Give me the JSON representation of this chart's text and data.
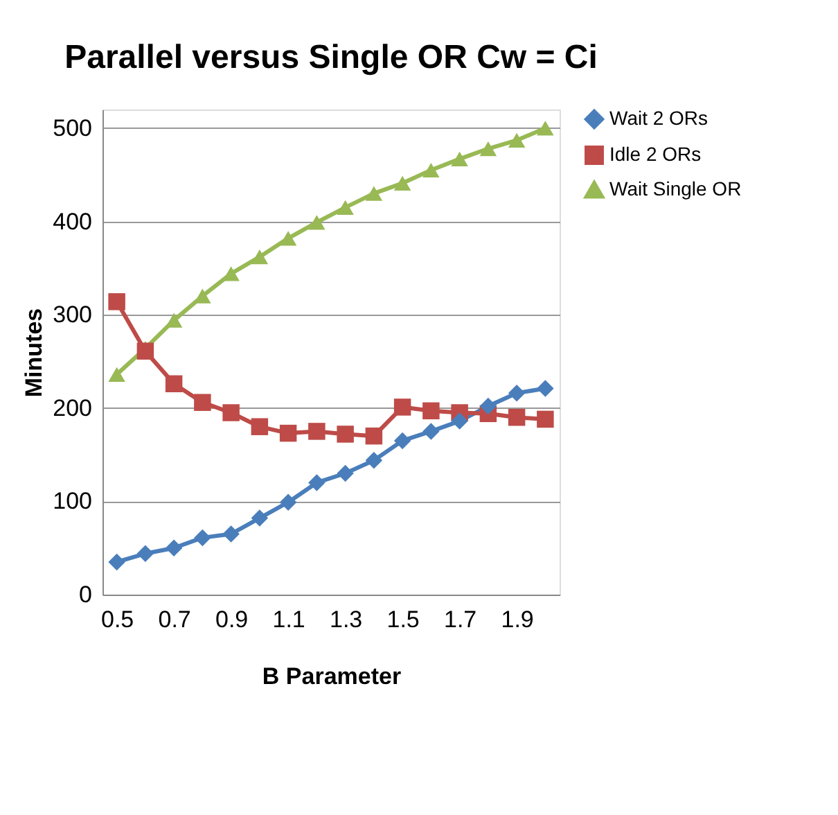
{
  "chart_data": {
    "type": "line",
    "title": "Parallel versus Single OR Cw = Ci",
    "xlabel": "B Parameter",
    "ylabel": "Minutes",
    "x": [
      0.5,
      0.6,
      0.7,
      0.8,
      0.9,
      1.0,
      1.1,
      1.2,
      1.3,
      1.4,
      1.5,
      1.6,
      1.7,
      1.8,
      1.9,
      2.0
    ],
    "series": [
      {
        "name": "Wait 2 ORs",
        "color": "#4a7ebb",
        "marker": "diamond",
        "values": [
          35,
          44,
          50,
          61,
          65,
          82,
          99,
          120,
          130,
          144,
          165,
          175,
          186,
          202,
          216,
          221
        ]
      },
      {
        "name": "Idle 2 ORs",
        "color": "#be4b48",
        "marker": "square",
        "values": [
          314,
          261,
          226,
          206,
          195,
          180,
          173,
          175,
          172,
          170,
          201,
          197,
          195,
          194,
          190,
          188
        ]
      },
      {
        "name": "Wait Single OR",
        "color": "#98b954",
        "marker": "triangle",
        "values": [
          236,
          264,
          294,
          320,
          344,
          362,
          382,
          399,
          415,
          430,
          441,
          455,
          467,
          478,
          487,
          500
        ]
      }
    ],
    "xlim": [
      0.45,
      2.05
    ],
    "xticks": [
      0.5,
      0.7,
      0.9,
      1.1,
      1.3,
      1.5,
      1.7,
      1.9
    ],
    "ylim": [
      0,
      520
    ],
    "yticks": [
      0,
      100,
      200,
      300,
      400,
      500
    ],
    "grid": "y",
    "legend": "right",
    "line_style": "solid"
  }
}
